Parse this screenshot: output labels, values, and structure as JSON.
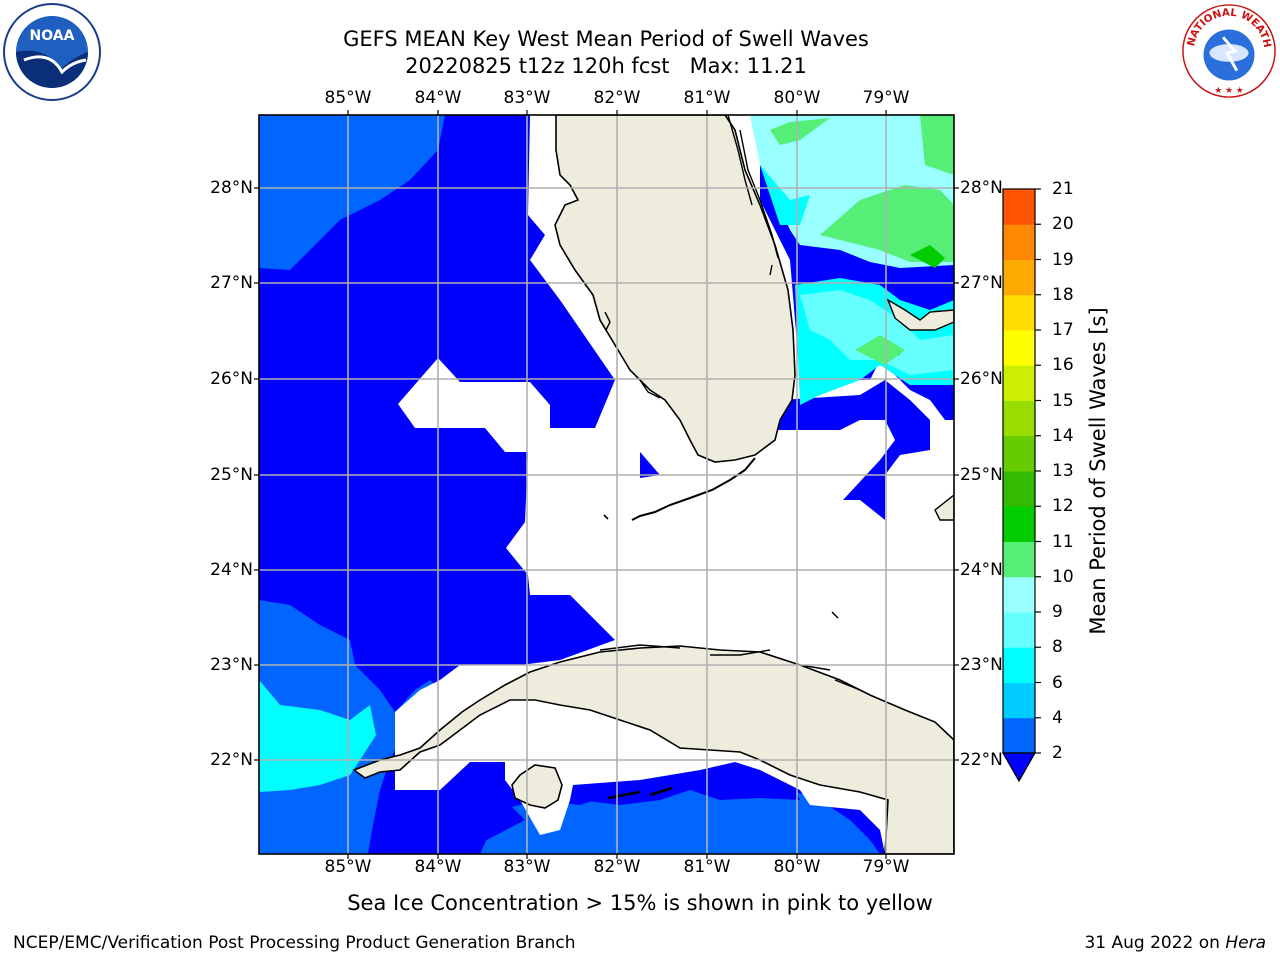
{
  "header": {
    "title_line1": "GEFS MEAN Key West Mean Period of Swell Waves",
    "title_line2": "20220825 t12z 120h fcst   Max: 11.21"
  },
  "map": {
    "lon_labels": [
      "85°W",
      "84°W",
      "83°W",
      "82°W",
      "81°W",
      "80°W",
      "79°W"
    ],
    "lat_labels": [
      "28°N",
      "27°N",
      "26°N",
      "25°N",
      "24°N",
      "23°N",
      "22°N"
    ],
    "lon_range": [
      -86.0,
      -78.3
    ],
    "lat_range": [
      21.05,
      28.8
    ],
    "land_color": "#eeeddd",
    "grid_color": "#b0b0b0"
  },
  "colorbar": {
    "title": "Mean Period of Swell Waves [s]",
    "ticks": [
      "2",
      "4",
      "6",
      "8",
      "9",
      "10",
      "11",
      "12",
      "13",
      "14",
      "15",
      "16",
      "17",
      "18",
      "19",
      "20",
      "21"
    ],
    "colors": [
      "#0066ff",
      "#00ccff",
      "#00ffff",
      "#66ffff",
      "#99ffff",
      "#55ee77",
      "#00cc00",
      "#33bb00",
      "#66cc00",
      "#99dd00",
      "#ccee00",
      "#ffff00",
      "#ffdd00",
      "#ffaa00",
      "#ff8800",
      "#ff5500",
      "#ff2200",
      "#ff0000"
    ],
    "extend": "min",
    "under_color": "#0000ff"
  },
  "logos": {
    "left": {
      "icon": "noaa-logo",
      "text": "NOAA"
    },
    "right": {
      "icon": "nws-logo",
      "text": "NATIONAL WEATHER SERVICE"
    }
  },
  "footer": {
    "note": "Sea Ice Concentration > 15% is shown in pink to yellow",
    "credit": "NCEP/EMC/Verification Post Processing Product Generation Branch",
    "date": "31 Aug 2022 on",
    "machine": "Hera"
  }
}
